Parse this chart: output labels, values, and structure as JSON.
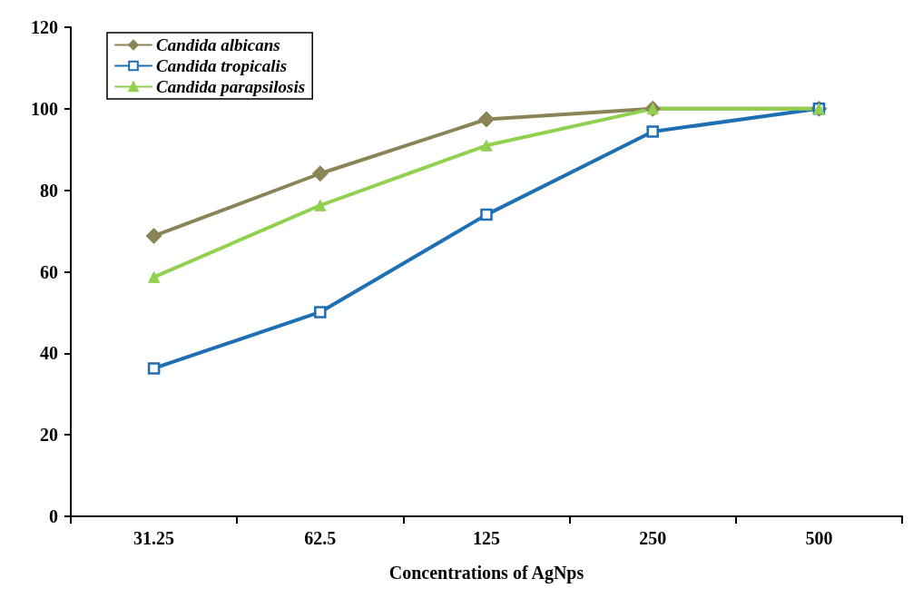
{
  "chart_data": {
    "type": "line",
    "xlabel": "Concentrations of AgNps",
    "categories": [
      "31.25",
      "62.5",
      "125",
      "250",
      "500"
    ],
    "ylim": [
      0,
      120
    ],
    "yticks": [
      0,
      20,
      40,
      60,
      80,
      100,
      120
    ],
    "grid": false,
    "legend": "top left",
    "series": [
      {
        "name": "Candida albicans",
        "color": "#8b8456",
        "marker": "diamond",
        "values": [
          68.8,
          84.1,
          97.4,
          100,
          100
        ]
      },
      {
        "name": "Candida tropicalis",
        "color": "#1f6fb4",
        "marker": "square",
        "values": [
          36.3,
          50.1,
          74,
          94.4,
          100
        ]
      },
      {
        "name": "Candida parapsilosis",
        "color": "#92d050",
        "marker": "triangle",
        "values": [
          58.7,
          76.3,
          91,
          100,
          100
        ]
      }
    ]
  }
}
